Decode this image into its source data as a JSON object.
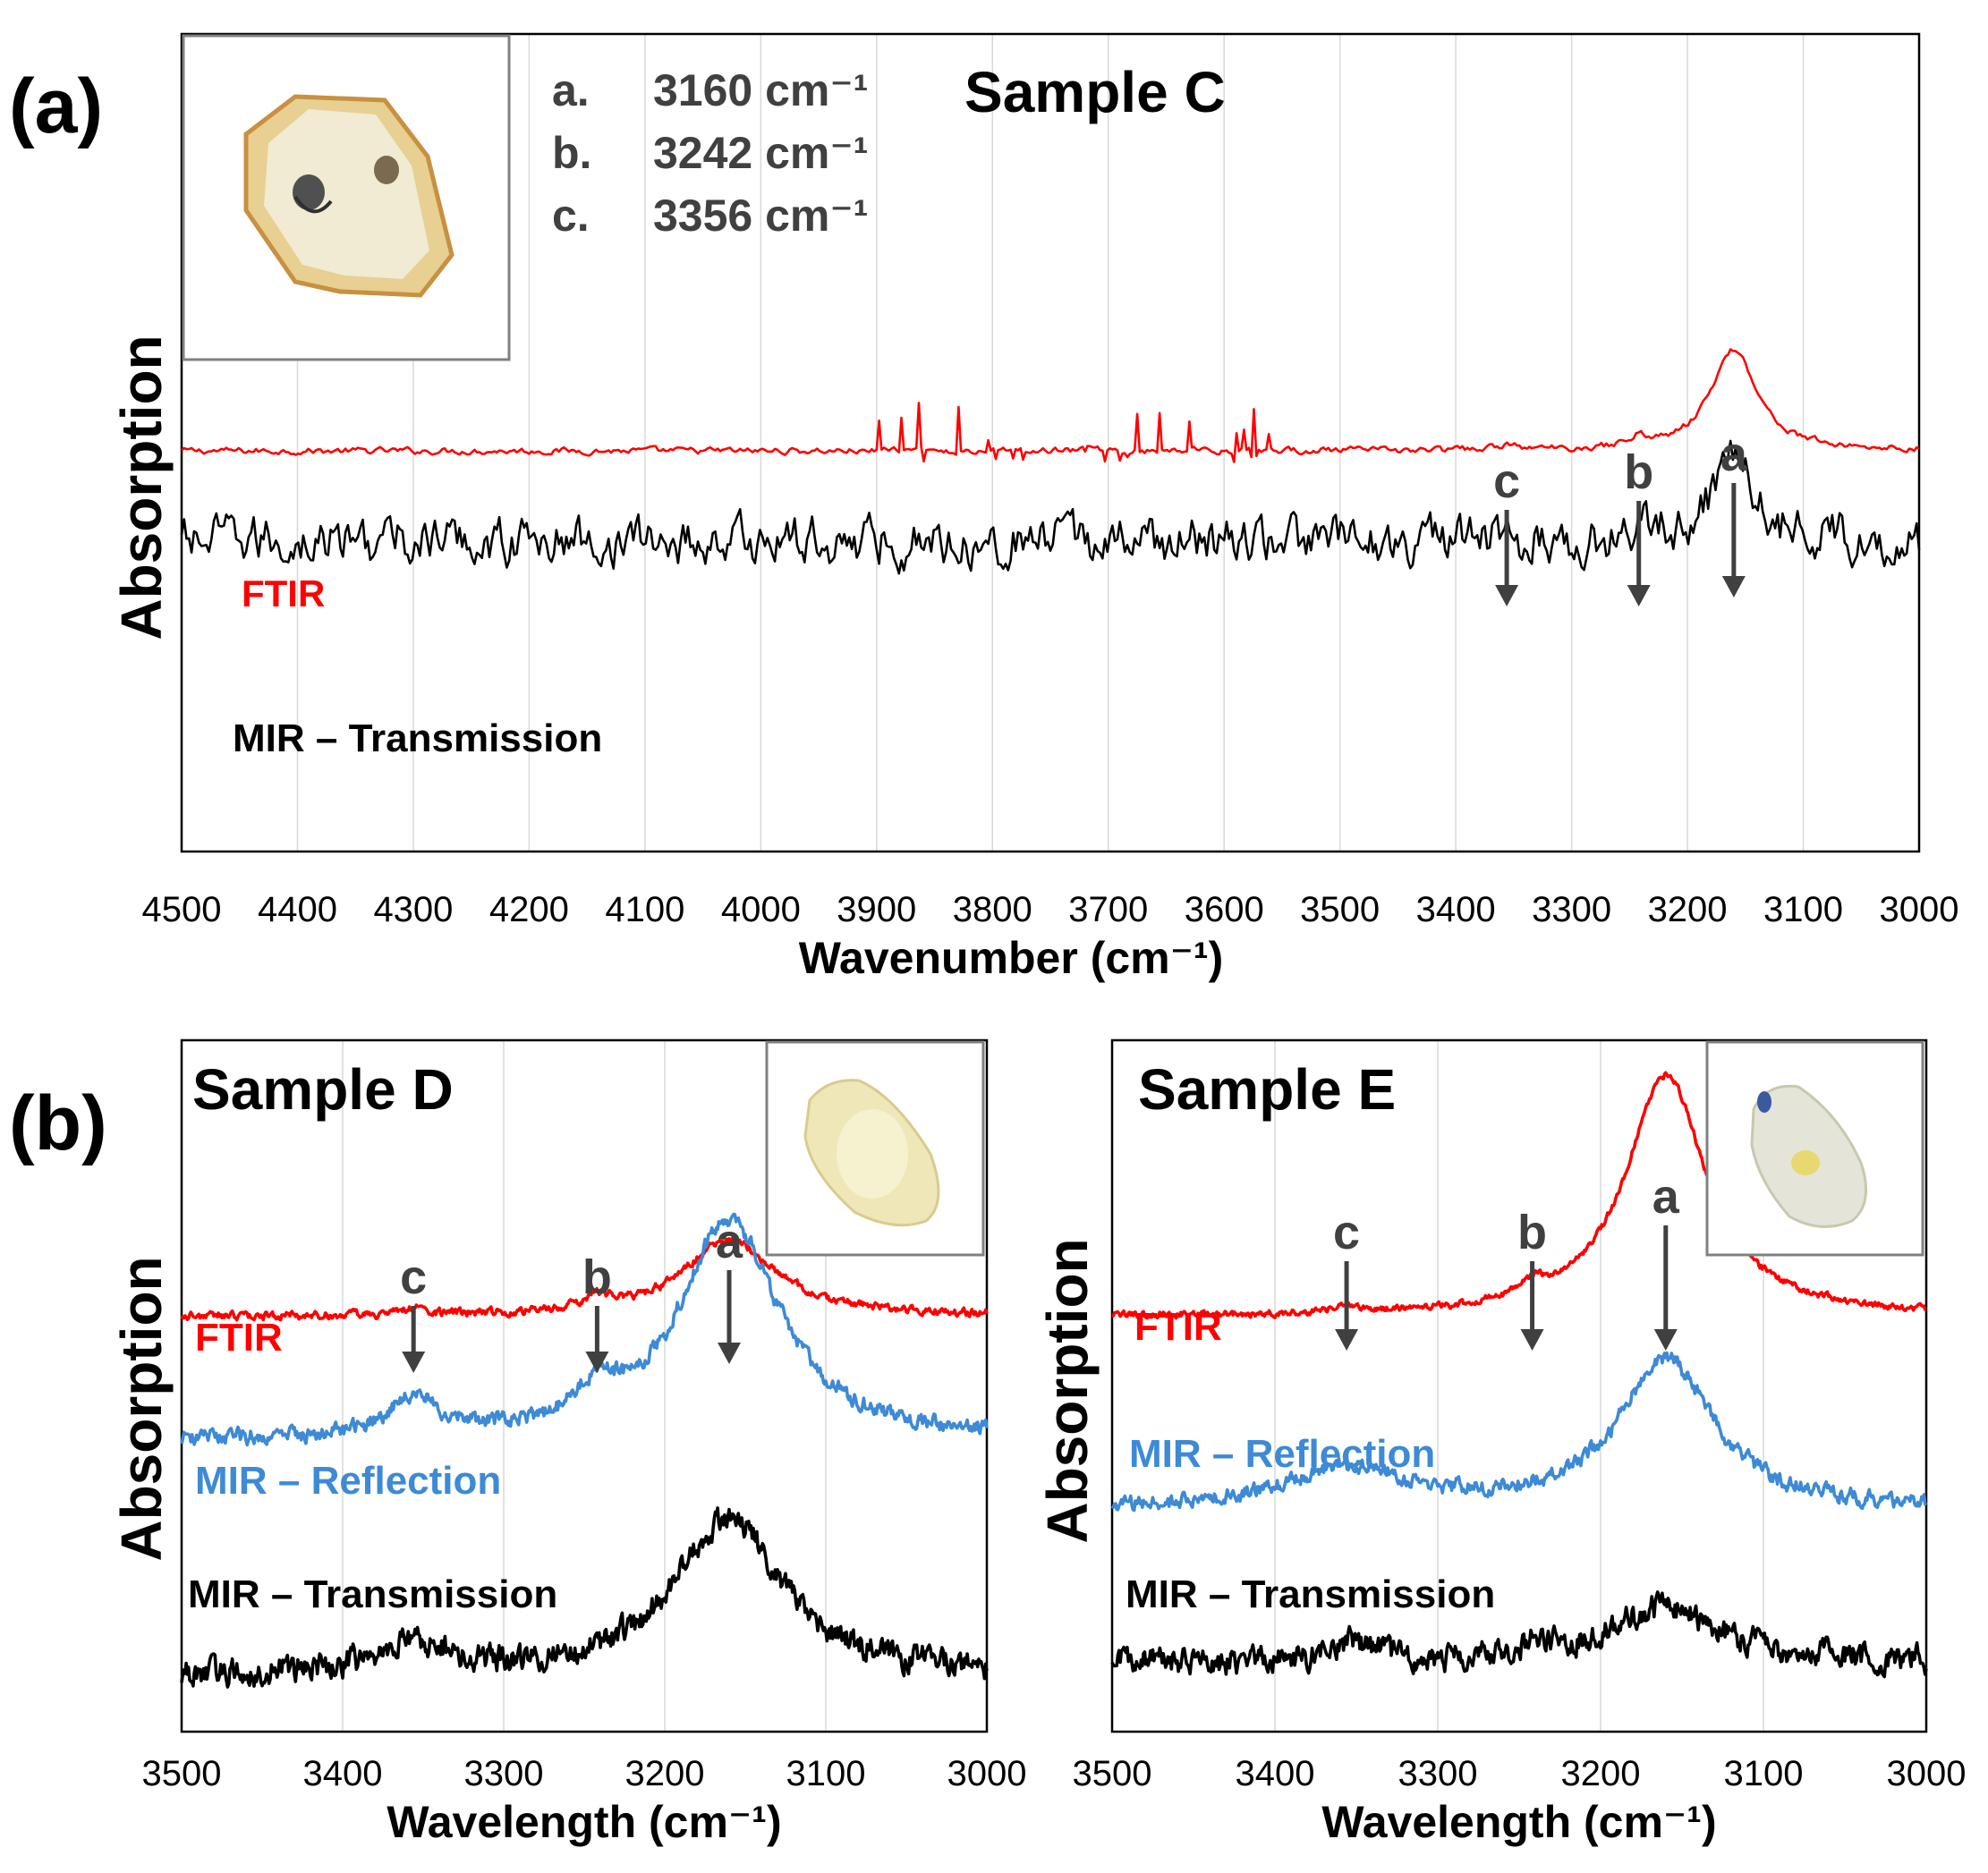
{
  "colors": {
    "ftir": "#ff0000",
    "reflection": "#3d8ad6",
    "transmission": "#000000",
    "grid": "#d9d9d9",
    "annotation": "#404040"
  },
  "chart_data": [
    {
      "id": "a",
      "panel_label": "(a)",
      "type": "line",
      "title": "Sample C",
      "xlabel": "Wavenumber (cm⁻¹)",
      "ylabel": "Absorption",
      "x_range": [
        4500,
        3000
      ],
      "x_ticks": [
        "4500",
        "4400",
        "4300",
        "4200",
        "4100",
        "4000",
        "3900",
        "3800",
        "3700",
        "3600",
        "3500",
        "3400",
        "3300",
        "3200",
        "3100",
        "3000"
      ],
      "grid": "vertical",
      "legend_notes": [
        {
          "letter": "a.",
          "value": "3160 cm⁻¹"
        },
        {
          "letter": "b.",
          "value": "3242 cm⁻¹"
        },
        {
          "letter": "c.",
          "value": "3356 cm⁻¹"
        }
      ],
      "peaks": [
        {
          "label": "a",
          "x": 3160
        },
        {
          "label": "b",
          "x": 3242
        },
        {
          "label": "c",
          "x": 3356
        }
      ],
      "series": [
        {
          "name": "FTIR",
          "color": "#ff0000",
          "offset": 0.49,
          "baseline_slope": 0.0,
          "noise": 0.004,
          "spikes": [
            3560,
            3920
          ],
          "spike_amp": 0.055,
          "peaks": [
            {
              "x": 3160,
              "amp": 0.125,
              "w": 24
            },
            {
              "x": 3242,
              "amp": 0.012,
              "w": 10
            },
            {
              "x": 3356,
              "amp": 0.006,
              "w": 10
            }
          ]
        },
        {
          "name": "MIR – Transmission",
          "color": "#000000",
          "offset": 0.38,
          "baseline_slope": 0.0,
          "noise": 0.03,
          "peaks": [
            {
              "x": 3160,
              "amp": 0.12,
              "w": 20
            },
            {
              "x": 3242,
              "amp": 0.015,
              "w": 10
            }
          ]
        }
      ]
    },
    {
      "id": "b-left",
      "panel_label": "(b)",
      "type": "line",
      "title": "Sample D",
      "xlabel": "Wavelength (cm⁻¹)",
      "ylabel": "Absorption",
      "x_range": [
        3500,
        3000
      ],
      "x_ticks": [
        "3500",
        "3400",
        "3300",
        "3200",
        "3100",
        "3000"
      ],
      "grid": "vertical",
      "peaks": [
        {
          "label": "a",
          "x": 3160
        },
        {
          "label": "b",
          "x": 3242
        },
        {
          "label": "c",
          "x": 3356
        }
      ],
      "series": [
        {
          "name": "FTIR",
          "color": "#ff0000",
          "offset": 0.6,
          "baseline_slope": 0.0,
          "noise": 0.006,
          "peaks": [
            {
              "x": 3160,
              "amp": 0.11,
              "w": 35
            },
            {
              "x": 3242,
              "amp": 0.02,
              "w": 10
            },
            {
              "x": 3356,
              "amp": 0.01,
              "w": 8
            }
          ]
        },
        {
          "name": "MIR – Reflection",
          "color": "#3d8ad6",
          "offset": 0.42,
          "baseline_slope": 0.0,
          "noise": 0.012,
          "peaks": [
            {
              "x": 3160,
              "amp": 0.32,
              "w": 38
            },
            {
              "x": 3242,
              "amp": 0.05,
              "w": 14
            },
            {
              "x": 3356,
              "amp": 0.06,
              "w": 18
            }
          ]
        },
        {
          "name": "MIR – Transmission",
          "color": "#000000",
          "offset": 0.08,
          "baseline_slope": 0.0,
          "noise": 0.02,
          "peaks": [
            {
              "x": 3160,
              "amp": 0.23,
              "w": 40
            },
            {
              "x": 3356,
              "amp": 0.04,
              "w": 30
            }
          ]
        }
      ]
    },
    {
      "id": "b-right",
      "panel_label": "",
      "type": "line",
      "title": "Sample E",
      "xlabel": "Wavelength (cm⁻¹)",
      "ylabel": "Absorption",
      "x_range": [
        3500,
        3000
      ],
      "x_ticks": [
        "3500",
        "3400",
        "3300",
        "3200",
        "3100",
        "3000"
      ],
      "grid": "vertical",
      "peaks": [
        {
          "label": "a",
          "x": 3160
        },
        {
          "label": "b",
          "x": 3242
        },
        {
          "label": "c",
          "x": 3356
        }
      ],
      "series": [
        {
          "name": "FTIR",
          "color": "#ff0000",
          "offset": 0.6,
          "baseline_slope": 0.0,
          "noise": 0.005,
          "peaks": [
            {
              "x": 3160,
              "amp": 0.35,
              "w": 30
            },
            {
              "x": 3242,
              "amp": 0.02,
              "w": 10
            },
            {
              "x": 3356,
              "amp": 0.01,
              "w": 8
            }
          ]
        },
        {
          "name": "MIR – Reflection",
          "color": "#3d8ad6",
          "offset": 0.32,
          "baseline_slope": 0.0,
          "noise": 0.012,
          "peaks": [
            {
              "x": 3160,
              "amp": 0.22,
              "w": 35
            },
            {
              "x": 3356,
              "amp": 0.06,
              "w": 45
            }
          ]
        },
        {
          "name": "MIR – Transmission",
          "color": "#000000",
          "offset": 0.1,
          "baseline_slope": 0.0,
          "noise": 0.02,
          "peaks": [
            {
              "x": 3160,
              "amp": 0.08,
              "w": 40
            },
            {
              "x": 3356,
              "amp": 0.03,
              "w": 15
            },
            {
              "x": 3242,
              "amp": 0.02,
              "w": 10
            }
          ]
        }
      ]
    }
  ]
}
